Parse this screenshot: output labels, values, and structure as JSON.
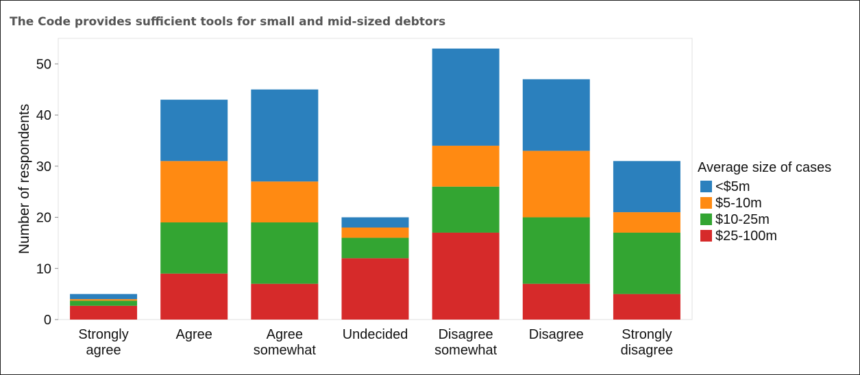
{
  "chart_data": {
    "type": "bar",
    "stacked": true,
    "title": "The Code provides sufficient tools for small and mid-sized debtors",
    "ylabel": "Number of respondents",
    "xlabel": "",
    "ylim": [
      0,
      55
    ],
    "yticks": [
      0,
      10,
      20,
      30,
      40,
      50
    ],
    "grid": false,
    "legend_title": "Average size of cases",
    "legend_position": "right",
    "categories": [
      [
        "Strongly",
        "agree"
      ],
      [
        "Agree"
      ],
      [
        "Agree",
        "somewhat"
      ],
      [
        "Undecided"
      ],
      [
        "Disagree",
        "somewhat"
      ],
      [
        "Disagree"
      ],
      [
        "Strongly",
        "disagree"
      ]
    ],
    "series": [
      {
        "name": "$25-100m",
        "color": "#d62a2a",
        "values": [
          2.7,
          9,
          7,
          12,
          17,
          7,
          5
        ]
      },
      {
        "name": "$10-25m",
        "color": "#33a532",
        "values": [
          1,
          10,
          12,
          4,
          9,
          13,
          12
        ]
      },
      {
        "name": "$5-10m",
        "color": "#ff8a12",
        "values": [
          0.3,
          12,
          8,
          2,
          8,
          13,
          4
        ]
      },
      {
        "name": "<$5m",
        "color": "#2b80bd",
        "values": [
          1,
          12,
          18,
          2,
          19,
          14,
          10
        ]
      }
    ],
    "legend_order": [
      "<$5m",
      "$5-10m",
      "$10-25m",
      "$25-100m"
    ]
  }
}
